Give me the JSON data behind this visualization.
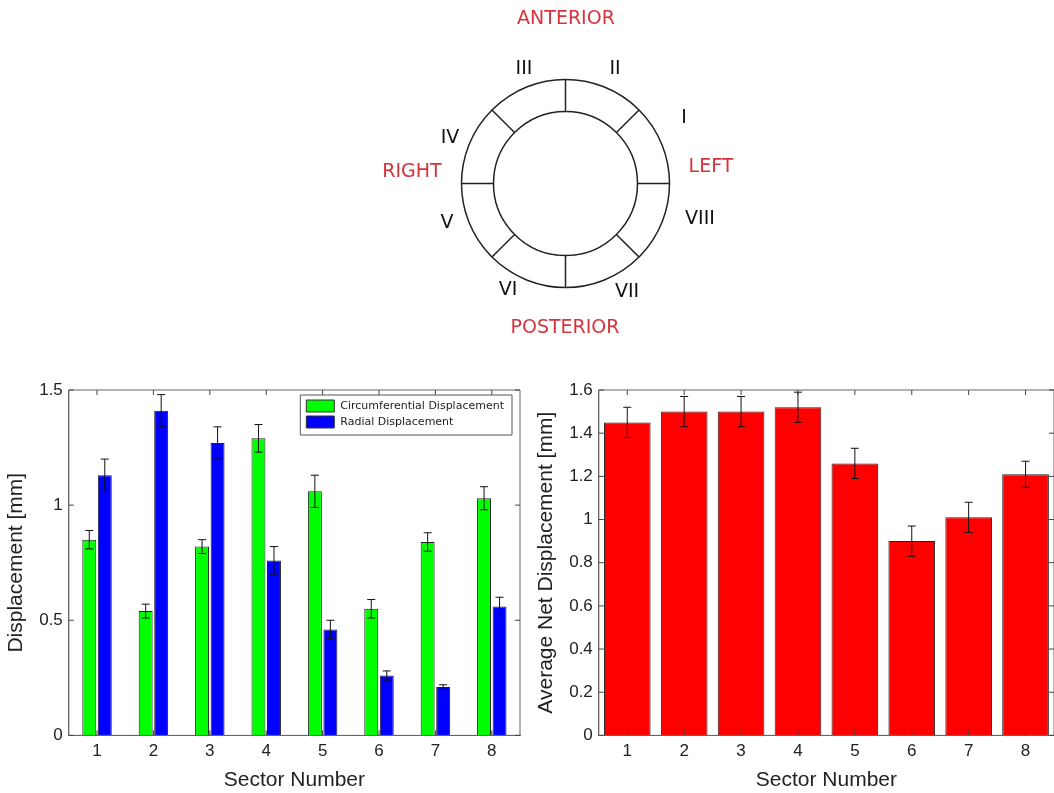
{
  "chart_data": [
    {
      "type": "other",
      "annotations": [
        "ANTERIOR",
        "III",
        "II",
        "I",
        "IV",
        "RIGHT",
        "LEFT",
        "V",
        "VIII",
        "VI",
        "VII",
        "POSTERIOR"
      ]
    },
    {
      "type": "bar",
      "categories": [
        "1",
        "2",
        "3",
        "4",
        "5",
        "6",
        "7",
        "8"
      ],
      "xlabel": "Sector Number",
      "ylabel": "Displacement [mm]",
      "ylim": [
        0,
        1.5
      ],
      "yticks": [
        0,
        0.5,
        1,
        1.5
      ],
      "grid": false,
      "legend": "top right",
      "series": [
        {
          "name": "Circumferential Displacement",
          "color": "#00ff00",
          "values": [
            0.85,
            0.54,
            0.82,
            1.29,
            1.06,
            0.55,
            0.84,
            1.03
          ],
          "errors": [
            0.04,
            0.03,
            0.03,
            0.06,
            0.07,
            0.04,
            0.04,
            0.05
          ]
        },
        {
          "name": "Radial Displacement",
          "color": "#0000ff",
          "values": [
            1.13,
            1.41,
            1.27,
            0.76,
            0.46,
            0.26,
            0.21,
            0.56
          ],
          "errors": [
            0.07,
            0.07,
            0.07,
            0.06,
            0.04,
            0.02,
            0.01,
            0.04
          ]
        }
      ]
    },
    {
      "type": "bar",
      "categories": [
        "1",
        "2",
        "3",
        "4",
        "5",
        "6",
        "7",
        "8"
      ],
      "xlabel": "Sector Number",
      "ylabel": "Average Net Displacement [mm]",
      "ylim": [
        0,
        1.6
      ],
      "yticks": [
        0,
        0.2,
        0.4,
        0.6,
        0.8,
        1,
        1.2,
        1.4,
        1.6
      ],
      "grid": false,
      "series": [
        {
          "color": "#ff0000",
          "values": [
            1.45,
            1.5,
            1.5,
            1.52,
            1.26,
            0.9,
            1.01,
            1.21
          ],
          "errors": [
            0.07,
            0.07,
            0.07,
            0.07,
            0.07,
            0.07,
            0.07,
            0.06
          ]
        }
      ]
    }
  ]
}
